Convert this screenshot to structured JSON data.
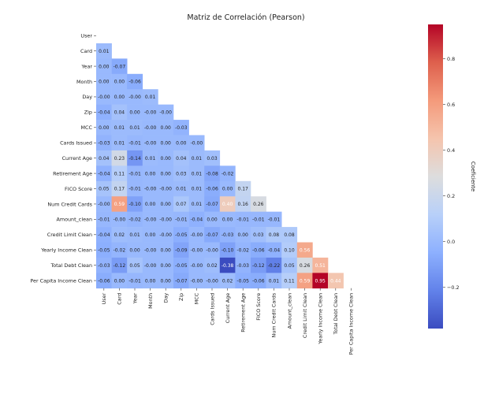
{
  "chart_data": {
    "type": "heatmap",
    "title": "Matriz de Correlación (Pearson)",
    "mask": "upper-triangle",
    "labels": [
      "User",
      "Card",
      "Year",
      "Month",
      "Day",
      "Zip",
      "MCC",
      "Cards Issued",
      "Current Age",
      "Retirement Age",
      "FICO Score",
      "Num Credit Cards",
      "Amount_clean",
      "Credit Limit Clean",
      "Yearly Income Clean",
      "Total Debt Clean",
      "Per Capita Income Clean"
    ],
    "matrix": [
      [],
      [
        "0.01"
      ],
      [
        "0.00",
        "-0.07"
      ],
      [
        "0.00",
        "0.00",
        "-0.06"
      ],
      [
        "-0.00",
        "0.00",
        "-0.00",
        "0.01"
      ],
      [
        "-0.04",
        "0.04",
        "0.00",
        "-0.00",
        "-0.00"
      ],
      [
        "0.00",
        "0.01",
        "0.01",
        "-0.00",
        "0.00",
        "-0.03"
      ],
      [
        "-0.03",
        "0.01",
        "-0.01",
        "-0.00",
        "0.00",
        "0.00",
        "-0.00"
      ],
      [
        "0.04",
        "0.23",
        "-0.14",
        "0.01",
        "0.00",
        "0.04",
        "0.01",
        "0.03"
      ],
      [
        "-0.04",
        "0.11",
        "-0.01",
        "0.00",
        "0.00",
        "0.03",
        "0.01",
        "-0.08",
        "-0.02"
      ],
      [
        "0.05",
        "0.17",
        "-0.01",
        "-0.00",
        "-0.00",
        "0.01",
        "0.01",
        "-0.06",
        "0.00",
        "0.17"
      ],
      [
        "-0.00",
        "0.59",
        "-0.10",
        "0.00",
        "0.00",
        "0.07",
        "0.01",
        "-0.07",
        "0.40",
        "0.16",
        "0.26"
      ],
      [
        "-0.01",
        "-0.00",
        "-0.02",
        "-0.00",
        "-0.00",
        "-0.01",
        "-0.04",
        "0.00",
        "0.00",
        "-0.01",
        "-0.01",
        "-0.01"
      ],
      [
        "-0.04",
        "0.02",
        "0.01",
        "0.00",
        "-0.00",
        "-0.05",
        "-0.00",
        "-0.07",
        "-0.03",
        "0.00",
        "0.03",
        "0.08",
        "0.08"
      ],
      [
        "-0.05",
        "-0.02",
        "0.00",
        "-0.00",
        "0.00",
        "-0.09",
        "-0.00",
        "-0.00",
        "-0.10",
        "-0.02",
        "-0.06",
        "-0.04",
        "0.10",
        "0.56"
      ],
      [
        "-0.03",
        "-0.12",
        "0.05",
        "-0.00",
        "0.00",
        "-0.05",
        "-0.00",
        "0.02",
        "-0.38",
        "-0.03",
        "-0.12",
        "-0.22",
        "0.05",
        "0.26",
        "0.51"
      ],
      [
        "-0.06",
        "0.00",
        "-0.01",
        "0.00",
        "0.00",
        "-0.07",
        "-0.00",
        "-0.00",
        "0.02",
        "-0.05",
        "-0.06",
        "0.01",
        "0.11",
        "0.59",
        "0.95",
        "0.44"
      ]
    ],
    "colorbar": {
      "label": "Coeficiente",
      "min": -0.38,
      "max": 0.95,
      "ticks": [
        -0.2,
        0,
        0.2,
        0.4,
        0.6,
        0.8
      ],
      "tick_labels": [
        "−0.2",
        "0.0",
        "0.2",
        "0.4",
        "0.6",
        "0.8"
      ],
      "colormap": "coolwarm"
    }
  }
}
